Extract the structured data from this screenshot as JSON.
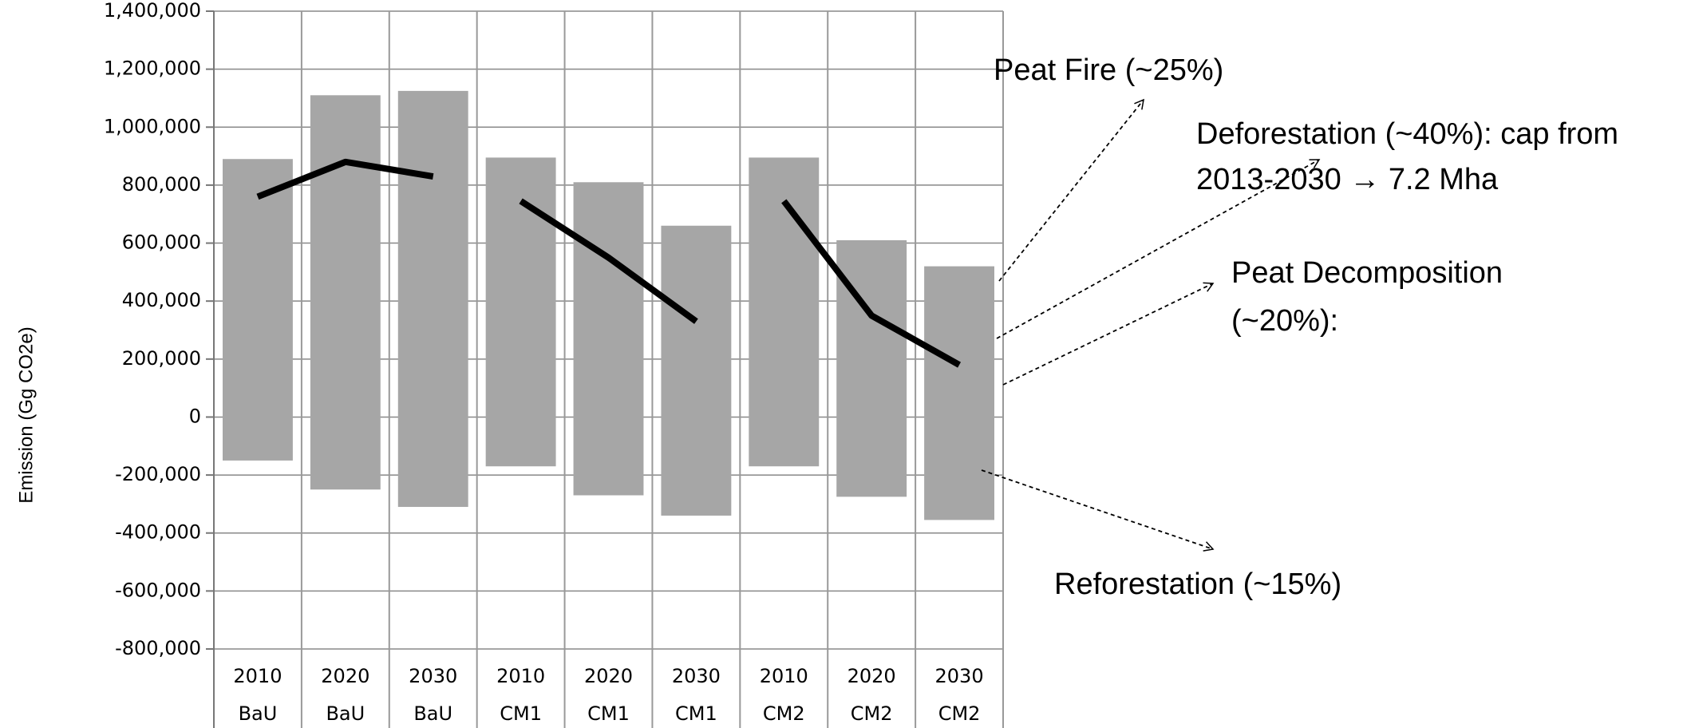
{
  "chart_data": {
    "type": "range-bar",
    "y_label": "Emission (Gg CO2e)",
    "categories": [
      "2010",
      "2020",
      "2030",
      "2010",
      "2020",
      "2030",
      "2010",
      "2020",
      "2030"
    ],
    "scenarios": [
      "BaU",
      "BaU",
      "BaU",
      "CM1",
      "CM1",
      "CM1",
      "CM2",
      "CM2",
      "CM2"
    ],
    "color": "#a6a6a6",
    "high": [
      890000,
      1110000,
      1125000,
      895000,
      810000,
      660000,
      895000,
      610000,
      520000
    ],
    "low": [
      -150000,
      -250000,
      -310000,
      -170000,
      -270000,
      -340000,
      -170000,
      -275000,
      -355000
    ],
    "series": [
      {
        "color": "#000000",
        "values": [
          760000,
          880000,
          830000,
          null,
          null,
          null,
          null,
          null,
          null
        ]
      },
      {
        "color": "#000000",
        "values": [
          null,
          null,
          null,
          745000,
          550000,
          330000,
          null,
          null,
          null
        ]
      },
      {
        "color": "#000000",
        "values": [
          null,
          null,
          null,
          null,
          null,
          null,
          745000,
          350000,
          180000
        ]
      }
    ],
    "ylim": [
      -800000,
      1400000
    ],
    "yticks": [
      {
        "value": -800000,
        "label": "-800,000"
      },
      {
        "value": -600000,
        "label": "-600,000"
      },
      {
        "value": -400000,
        "label": "-400,000"
      },
      {
        "value": -200000,
        "label": "-200,000"
      },
      0,
      {
        "value": 200000,
        "label": "200,000"
      },
      {
        "value": 400000,
        "label": "400,000"
      },
      {
        "value": 600000,
        "label": "600,000"
      },
      {
        "value": 800000,
        "label": "800,000"
      },
      {
        "value": 1000000,
        "label": "1,000,000"
      },
      {
        "value": 1200000,
        "label": "1,200,000"
      },
      {
        "value": 1400000,
        "label": "1,400,000"
      }
    ],
    "grid": true,
    "annotations": [
      "Peat Fire (~25%)",
      "Deforestation (~40%): cap from",
      "2013-2030 → 7.2 Mha",
      "Peat Decomposition",
      "(~20%):",
      "Reforestation (~15%)"
    ]
  }
}
